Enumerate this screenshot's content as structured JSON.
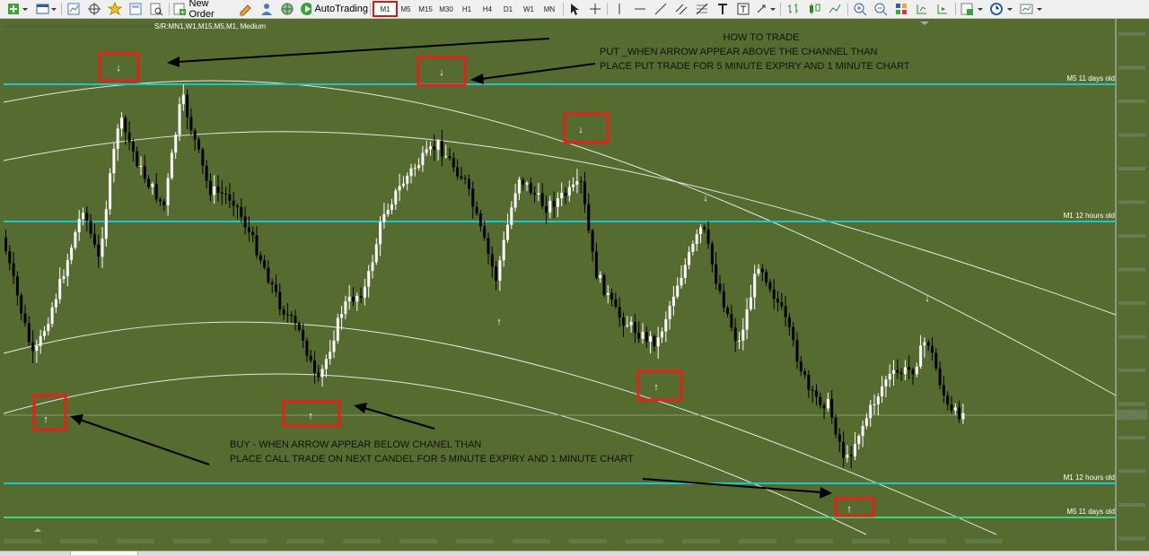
{
  "toolbar": {
    "new_order_label": "New Order",
    "autotrading_label": "AutoTrading",
    "timeframes": [
      "M1",
      "M5",
      "M15",
      "M30",
      "H1",
      "H4",
      "D1",
      "W1",
      "MN"
    ],
    "active_timeframe": "M1"
  },
  "chart": {
    "symbol_header": "S/R:MN1,W1,M15,M5,M1, Medium",
    "background_color": "#556b2f",
    "level_line_color": "#20c5c5",
    "level_line_color_green": "#3bd67a",
    "level_labels": {
      "top_m5": "M5 11 days old",
      "m1_upper": "M1 12 hours old",
      "m1_lower": "M1 12 hours old",
      "bottom_m5": "M5 11 days old"
    },
    "put_instructions": {
      "line1": "HOW TO TRADE",
      "line2": "PUT _WHEN ARROW APPEAR ABOVE THE CHANNEL THAN",
      "line3": "PLACE PUT TRADE FOR 5 MINUTE EXPIRY AND  1 MINUTE CHART"
    },
    "call_instructions": {
      "line1": "BUY - WHEN ARROW APPEAR BELOW CHANEL THAN",
      "line2": "PLACE CALL TRADE ON NEXT CANDEL FOR 5 MINUTE EXPIRY AND 1 MINUTE CHART"
    },
    "arrow_up_glyph": "↑",
    "arrow_down_glyph": "↓"
  }
}
